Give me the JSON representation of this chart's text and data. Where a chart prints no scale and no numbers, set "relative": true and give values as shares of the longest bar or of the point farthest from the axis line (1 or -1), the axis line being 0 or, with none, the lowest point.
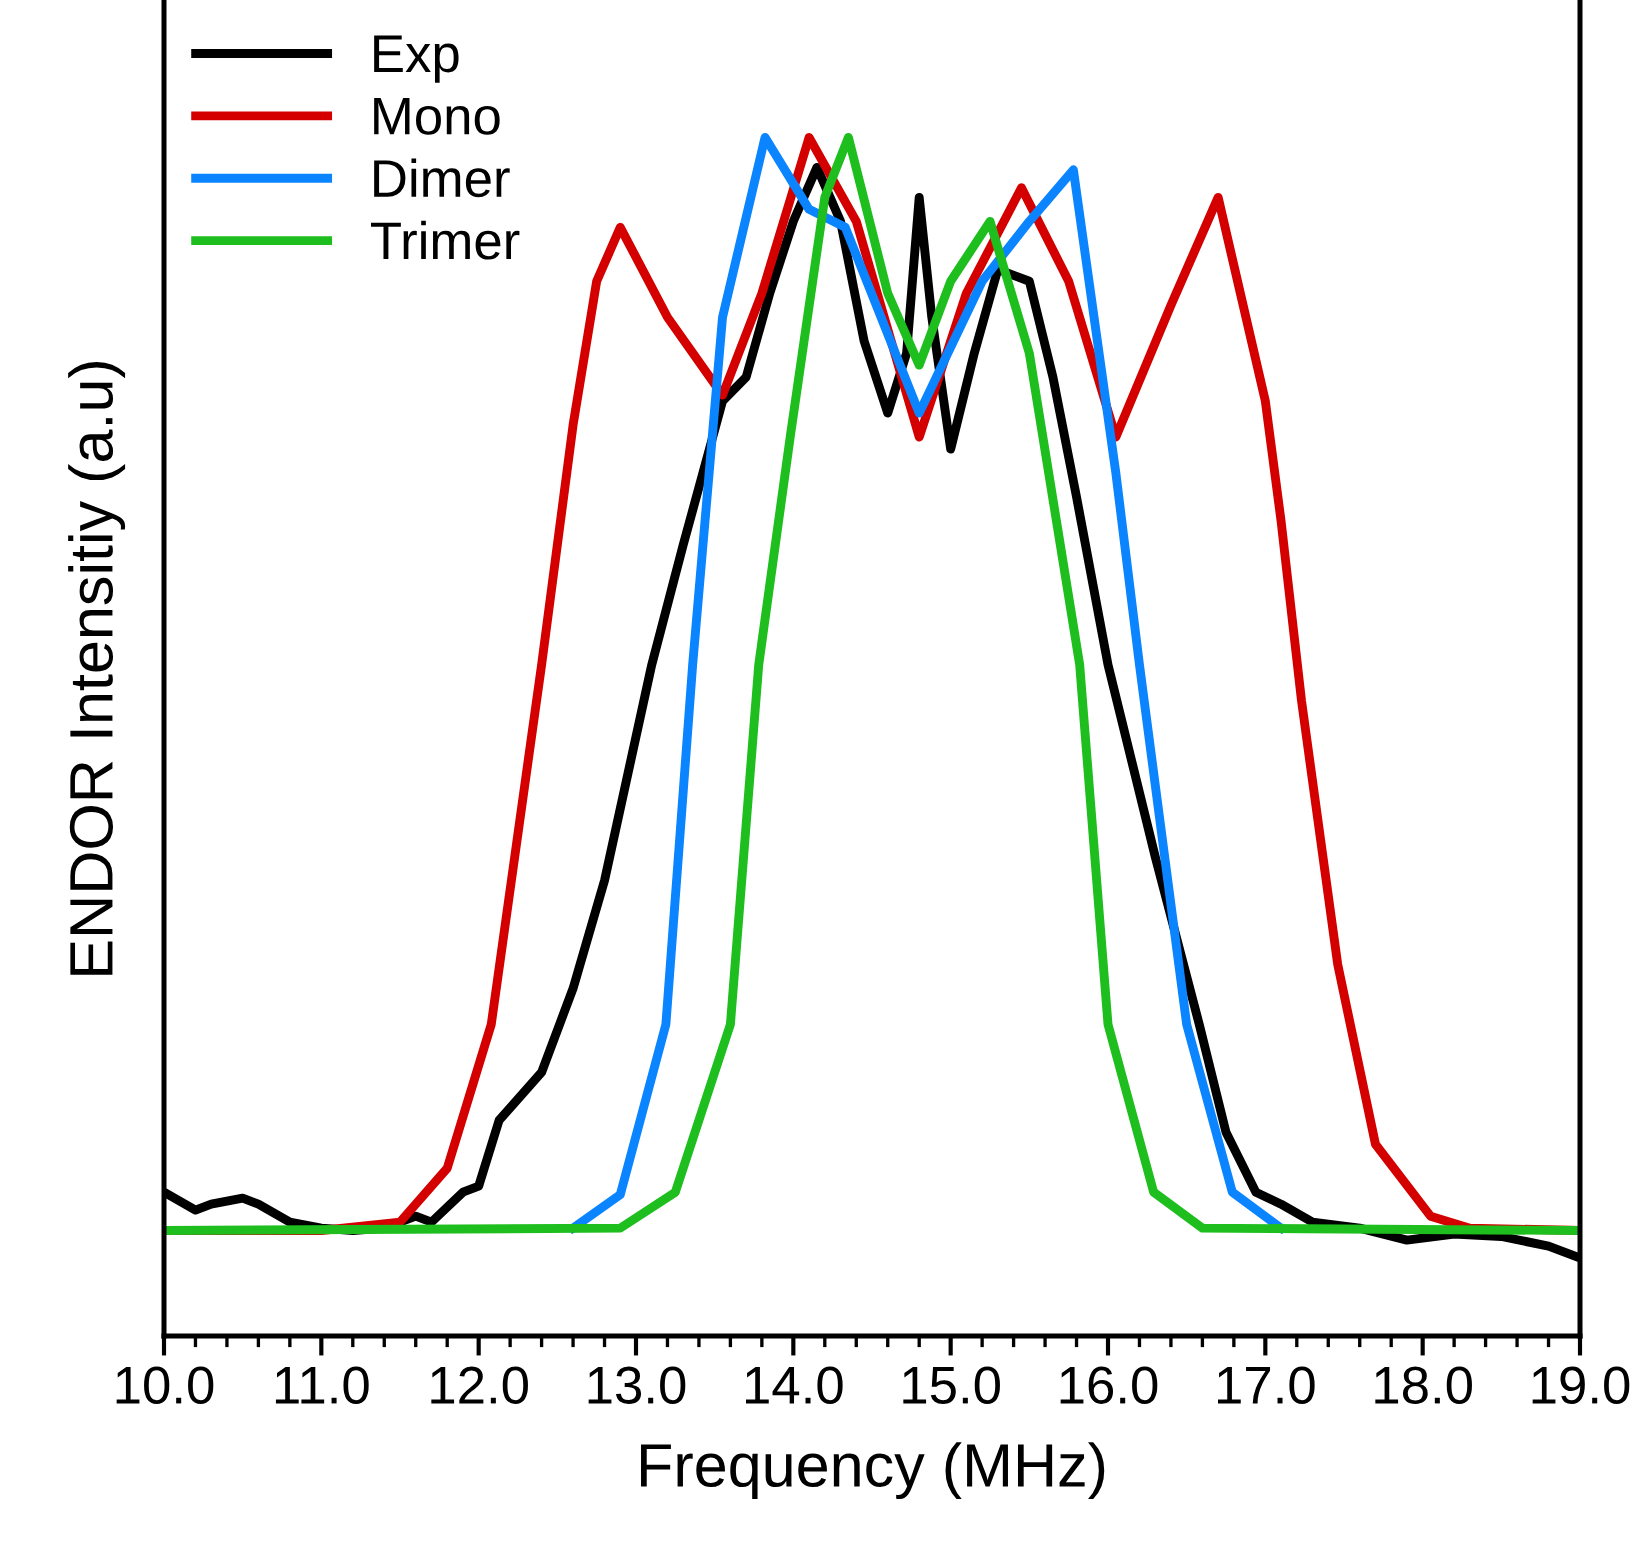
{
  "chart_data": {
    "type": "line",
    "xlabel": "Frequency (MHz)",
    "ylabel": "ENDOR Intensitiy (a.u)",
    "relative": true,
    "legend": "top left",
    "tick_labels": "x",
    "grid": false,
    "xlim": [
      10.0,
      19.0
    ],
    "xticks": [
      {
        "value": 10,
        "label": "10.0"
      },
      {
        "value": 11,
        "label": "11.0"
      },
      {
        "value": 12,
        "label": "12.0"
      },
      {
        "value": 13,
        "label": "13.0"
      },
      {
        "value": 14,
        "label": "14.0"
      },
      {
        "value": 15,
        "label": "15.0"
      },
      {
        "value": 16,
        "label": "16.0"
      },
      {
        "value": 17,
        "label": "17.0"
      },
      {
        "value": 18,
        "label": "18.0"
      },
      {
        "value": 19,
        "label": "19.0"
      }
    ],
    "series": [
      {
        "name": "Exp",
        "color": "#000000",
        "x": [
          10.0,
          10.2,
          10.3,
          10.5,
          10.6,
          10.8,
          11.0,
          11.2,
          11.4,
          11.6,
          11.7,
          11.9,
          12.0,
          12.13,
          12.4,
          12.6,
          12.8,
          13.1,
          13.3,
          13.55,
          13.7,
          13.85,
          14.0,
          14.15,
          14.3,
          14.45,
          14.6,
          14.72,
          14.8,
          14.88,
          15.0,
          15.15,
          15.3,
          15.5,
          15.65,
          15.8,
          16.0,
          16.3,
          16.58,
          16.75,
          16.94,
          17.1,
          17.3,
          17.6,
          17.9,
          18.2,
          18.5,
          18.8,
          19.0
        ],
        "values": [
          0.12,
          0.105,
          0.11,
          0.115,
          0.11,
          0.095,
          0.09,
          0.088,
          0.09,
          0.1,
          0.095,
          0.12,
          0.125,
          0.18,
          0.22,
          0.29,
          0.38,
          0.56,
          0.66,
          0.78,
          0.8,
          0.87,
          0.93,
          0.975,
          0.93,
          0.83,
          0.77,
          0.82,
          0.95,
          0.85,
          0.74,
          0.82,
          0.89,
          0.88,
          0.8,
          0.7,
          0.56,
          0.4,
          0.26,
          0.17,
          0.12,
          0.11,
          0.095,
          0.09,
          0.08,
          0.085,
          0.083,
          0.075,
          0.065
        ]
      },
      {
        "name": "Mono",
        "color": "#d40000",
        "x": [
          10.0,
          11.0,
          11.5,
          11.8,
          12.08,
          12.4,
          12.6,
          12.75,
          12.9,
          13.2,
          13.55,
          13.8,
          14.1,
          14.4,
          14.6,
          14.8,
          15.1,
          15.45,
          15.75,
          16.05,
          16.4,
          16.7,
          17.0,
          17.1,
          17.23,
          17.46,
          17.7,
          18.05,
          18.3,
          19.0
        ],
        "values": [
          0.088,
          0.088,
          0.095,
          0.14,
          0.26,
          0.56,
          0.76,
          0.88,
          0.925,
          0.85,
          0.785,
          0.87,
          1.0,
          0.93,
          0.84,
          0.75,
          0.87,
          0.958,
          0.88,
          0.75,
          0.86,
          0.95,
          0.78,
          0.68,
          0.53,
          0.31,
          0.16,
          0.1,
          0.09,
          0.088
        ]
      },
      {
        "name": "Dimer",
        "color": "#0a84ff",
        "x": [
          12.6,
          12.9,
          13.19,
          13.36,
          13.55,
          13.82,
          14.1,
          14.33,
          14.8,
          15.2,
          15.5,
          15.78,
          16.05,
          16.2,
          16.5,
          16.79,
          17.1
        ],
        "values": [
          0.09,
          0.118,
          0.26,
          0.56,
          0.85,
          1.0,
          0.94,
          0.925,
          0.77,
          0.88,
          0.93,
          0.973,
          0.72,
          0.56,
          0.26,
          0.12,
          0.09
        ]
      },
      {
        "name": "Trimer",
        "color": "#1ebe1e",
        "x": [
          10.0,
          12.9,
          13.25,
          13.6,
          13.78,
          13.98,
          14.2,
          14.35,
          14.6,
          14.8,
          15.0,
          15.25,
          15.5,
          15.82,
          16.0,
          16.29,
          16.6,
          19.0
        ],
        "values": [
          0.088,
          0.09,
          0.12,
          0.26,
          0.56,
          0.75,
          0.95,
          1.0,
          0.87,
          0.81,
          0.88,
          0.93,
          0.82,
          0.56,
          0.26,
          0.12,
          0.09,
          0.088
        ]
      }
    ]
  }
}
